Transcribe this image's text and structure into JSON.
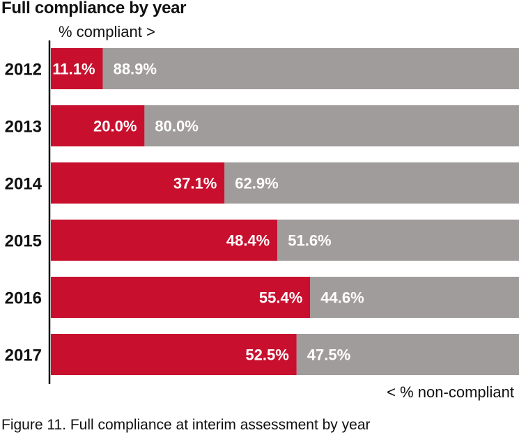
{
  "title": "Full compliance by year",
  "compliant_label": "% compliant >",
  "noncompliant_label": "< % non-compliant",
  "caption": "Figure 11.   Full compliance at interim assessment by year",
  "colors": {
    "compliant": "#c8102e",
    "non_compliant": "#a09c9b",
    "axis": "#111111"
  },
  "chart_data": {
    "type": "bar",
    "orientation": "horizontal",
    "stacked": true,
    "categories": [
      "2012",
      "2013",
      "2014",
      "2015",
      "2016",
      "2017"
    ],
    "series": [
      {
        "name": "% compliant",
        "values": [
          11.1,
          20.0,
          37.1,
          48.4,
          55.4,
          52.5
        ],
        "labels": [
          "11.1%",
          "20.0%",
          "37.1%",
          "48.4%",
          "55.4%",
          "52.5%"
        ]
      },
      {
        "name": "% non-compliant",
        "values": [
          88.9,
          80.0,
          62.9,
          51.6,
          44.6,
          47.5
        ],
        "labels": [
          "88.9%",
          "80.0%",
          "62.9%",
          "51.6%",
          "44.6%",
          "47.5%"
        ]
      }
    ],
    "xlim": [
      0,
      100
    ],
    "grid": false,
    "legend": "none"
  }
}
